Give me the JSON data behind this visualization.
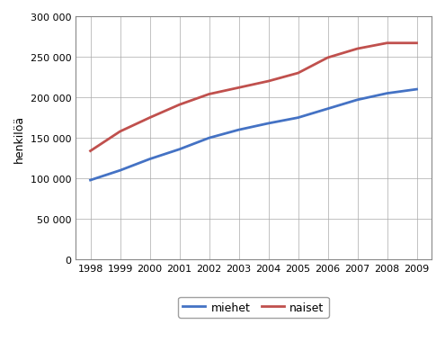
{
  "years": [
    1998,
    1999,
    2000,
    2001,
    2002,
    2003,
    2004,
    2005,
    2006,
    2007,
    2008,
    2009
  ],
  "miehet": [
    98000,
    110000,
    124000,
    136000,
    150000,
    160000,
    168000,
    175000,
    186000,
    197000,
    205000,
    210000
  ],
  "naiset": [
    134000,
    158000,
    175000,
    191000,
    204000,
    212000,
    220000,
    230000,
    249000,
    260000,
    267000,
    267000
  ],
  "miehet_color": "#4472C4",
  "naiset_color": "#C0504D",
  "ylabel": "henkilöä",
  "ylim": [
    0,
    300000
  ],
  "yticks": [
    0,
    50000,
    100000,
    150000,
    200000,
    250000,
    300000
  ],
  "xlim": [
    1998,
    2009
  ],
  "legend_miehet": "miehet",
  "legend_naiset": "naiset",
  "bg_color": "#ffffff",
  "grid_color": "#aaaaaa",
  "line_width": 2.0
}
